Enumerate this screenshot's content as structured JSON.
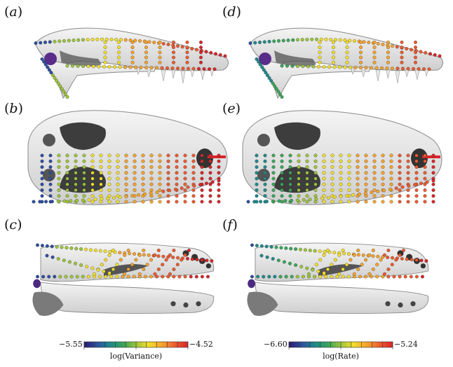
{
  "panels": [
    {
      "letter": "a",
      "view": "lateral",
      "metric": "variance"
    },
    {
      "letter": "b",
      "view": "dorsal",
      "metric": "variance"
    },
    {
      "letter": "c",
      "view": "internal",
      "metric": "variance"
    },
    {
      "letter": "d",
      "view": "lateral",
      "metric": "rate"
    },
    {
      "letter": "e",
      "view": "dorsal",
      "metric": "rate"
    },
    {
      "letter": "f",
      "view": "internal",
      "metric": "rate"
    }
  ],
  "colorbars": [
    {
      "min_label": "−5.55",
      "max_label": "−4.52",
      "title": "log(Variance)"
    },
    {
      "min_label": "−6.60",
      "max_label": "−5.24",
      "title": "log(Rate)"
    }
  ],
  "colors": {
    "colormap": [
      "#2b1a6b",
      "#2e4fa0",
      "#1f8a8a",
      "#3aa65a",
      "#9cc53b",
      "#f1de2a",
      "#f6a32c",
      "#ee5a2f",
      "#d8262a"
    ],
    "bone": "#e3e3e3",
    "bone_shadow": "#6a6a6a"
  }
}
